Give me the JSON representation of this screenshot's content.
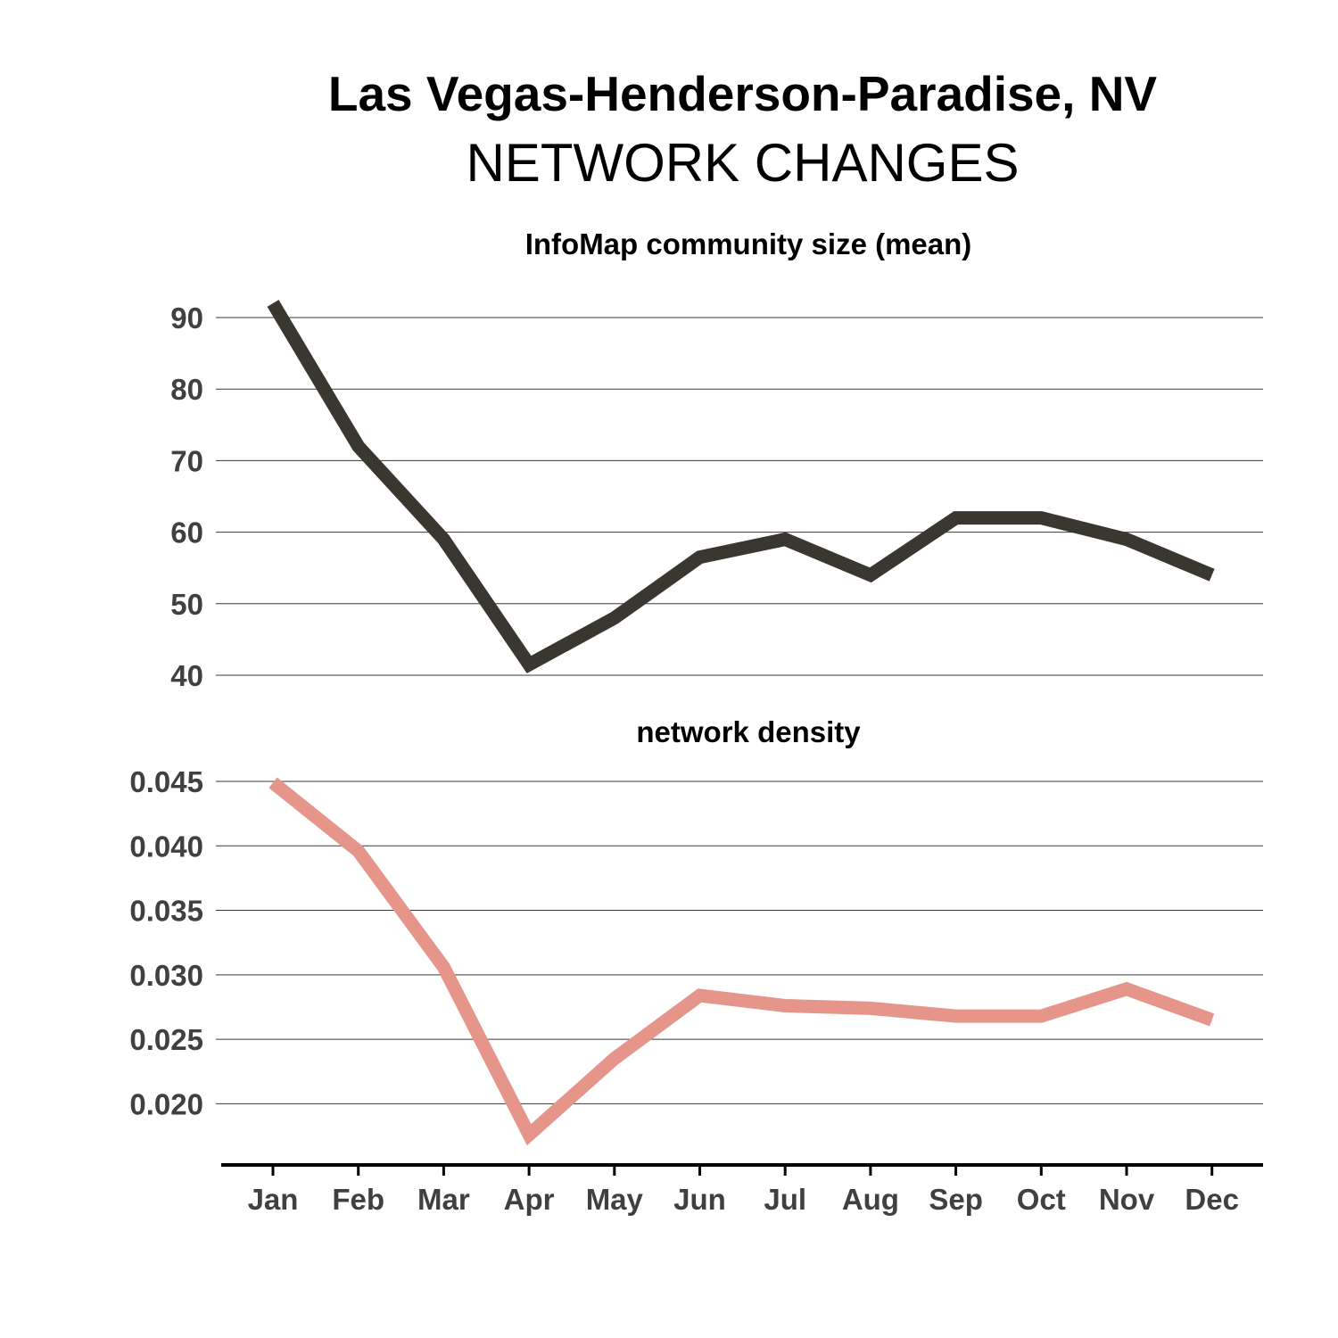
{
  "header": {
    "title": "Las Vegas-Henderson-Paradise, NV",
    "subtitle": "NETWORK CHANGES"
  },
  "chart_data": [
    {
      "type": "line",
      "title": "InfoMap community size (mean)",
      "xlabel": "",
      "ylabel": "",
      "categories": [
        "Jan",
        "Feb",
        "Mar",
        "Apr",
        "May",
        "Jun",
        "Jul",
        "Aug",
        "Sep",
        "Oct",
        "Nov",
        "Dec"
      ],
      "series": [
        {
          "values": [
            92.0,
            72.0,
            59.0,
            41.5,
            48.0,
            56.5,
            59.0,
            54.0,
            62.0,
            62.0,
            59.0,
            54.0
          ],
          "color": "#3a3730"
        }
      ],
      "yticks": [
        40,
        50,
        60,
        70,
        80,
        90
      ],
      "ytick_labels": [
        "40",
        "50",
        "60",
        "70",
        "80",
        "90"
      ],
      "ylim": [
        40,
        92.5
      ],
      "grid": true,
      "legend": "none"
    },
    {
      "type": "line",
      "title": "network density",
      "xlabel": "",
      "ylabel": "",
      "categories": [
        "Jan",
        "Feb",
        "Mar",
        "Apr",
        "May",
        "Jun",
        "Jul",
        "Aug",
        "Sep",
        "Oct",
        "Nov",
        "Dec"
      ],
      "series": [
        {
          "values": [
            0.0449,
            0.0396,
            0.0306,
            0.0176,
            0.0235,
            0.0284,
            0.0276,
            0.0274,
            0.0268,
            0.0268,
            0.0289,
            0.0265
          ],
          "color": "#e5958a"
        }
      ],
      "yticks": [
        0.02,
        0.025,
        0.03,
        0.035,
        0.04,
        0.045
      ],
      "ytick_labels": [
        "0.020",
        "0.025",
        "0.030",
        "0.035",
        "0.040",
        "0.045"
      ],
      "ylim": [
        0.0165,
        0.045
      ],
      "grid": true,
      "legend": "none"
    }
  ]
}
